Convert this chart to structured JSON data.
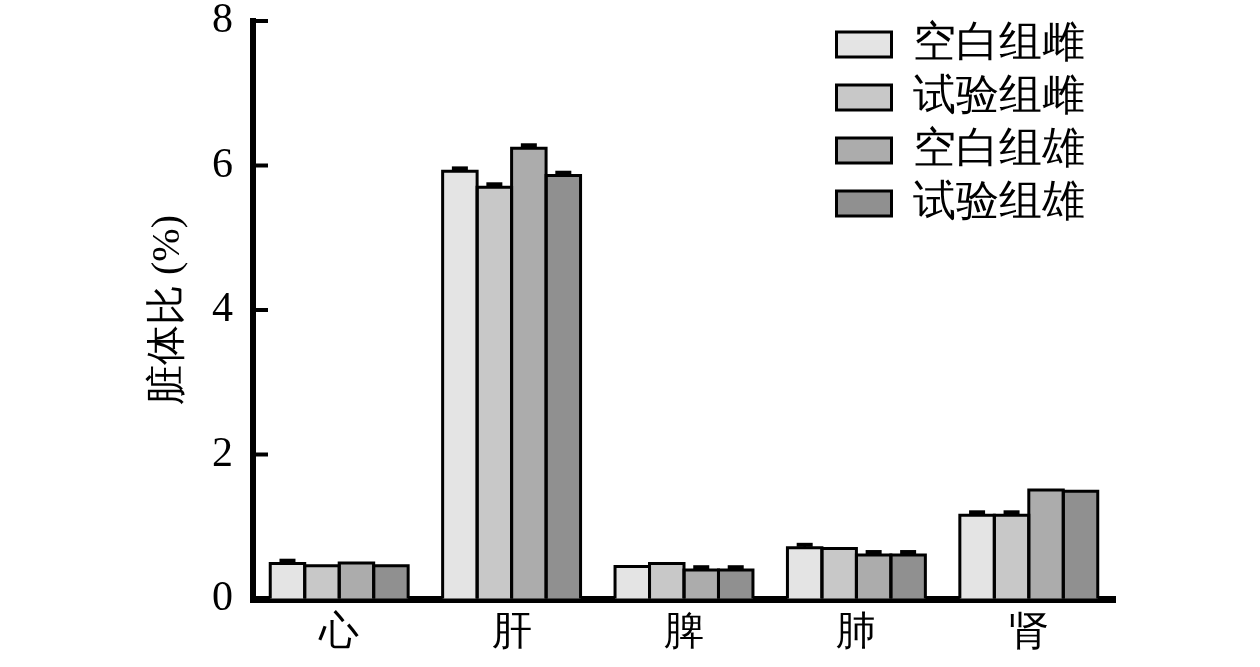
{
  "chart_data": {
    "type": "bar",
    "ylabel": "脏体比 (%)",
    "categories": [
      "心",
      "肝",
      "脾",
      "肺",
      "肾"
    ],
    "series": [
      {
        "name": "空白组雌",
        "color": "#e4e4e4",
        "values": [
          0.49,
          5.92,
          0.45,
          0.71,
          1.16
        ],
        "errors": [
          [
            0.49,
            0.53
          ],
          [
            5.92,
            5.96
          ],
          null,
          [
            0.71,
            0.75
          ],
          [
            1.16,
            1.2
          ]
        ]
      },
      {
        "name": "试验组雌",
        "color": "#c8c8c8",
        "values": [
          0.46,
          5.7,
          0.49,
          0.7,
          1.16
        ],
        "errors": [
          null,
          [
            5.7,
            5.74
          ],
          null,
          null,
          [
            1.16,
            1.2
          ]
        ]
      },
      {
        "name": "空白组雄",
        "color": "#acacac",
        "values": [
          0.5,
          6.24,
          0.4,
          0.61,
          1.51
        ],
        "errors": [
          null,
          [
            6.24,
            6.28
          ],
          [
            0.4,
            0.44
          ],
          [
            0.61,
            0.65
          ],
          null
        ]
      },
      {
        "name": "试验组雄",
        "color": "#909090",
        "values": [
          0.46,
          5.86,
          0.4,
          0.61,
          1.49
        ],
        "errors": [
          null,
          [
            5.86,
            5.9
          ],
          [
            0.4,
            0.44
          ],
          [
            0.61,
            0.65
          ],
          null
        ]
      }
    ],
    "ylim": [
      0,
      8
    ],
    "yticks": [
      0,
      2,
      4,
      6,
      8
    ],
    "legend": "top right"
  }
}
